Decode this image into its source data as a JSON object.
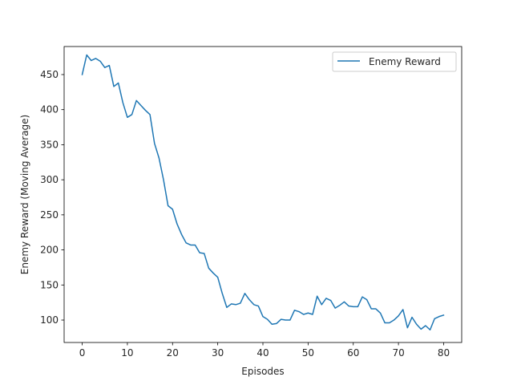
{
  "chart_data": {
    "type": "line",
    "title": "",
    "xlabel": "Episodes",
    "ylabel": "Enemy Reward (Moving Average)",
    "xlim": [
      -4,
      84
    ],
    "ylim": [
      68,
      490
    ],
    "xticks": [
      0,
      10,
      20,
      30,
      40,
      50,
      60,
      70,
      80
    ],
    "yticks": [
      100,
      150,
      200,
      250,
      300,
      350,
      400,
      450
    ],
    "grid": false,
    "legend": {
      "position": "top-right",
      "entries": [
        "Enemy Reward"
      ]
    },
    "series": [
      {
        "name": "Enemy Reward",
        "color": "#1f77b4",
        "x": [
          0,
          1,
          2,
          3,
          4,
          5,
          6,
          7,
          8,
          9,
          10,
          11,
          12,
          13,
          14,
          15,
          16,
          17,
          18,
          19,
          20,
          21,
          22,
          23,
          24,
          25,
          26,
          27,
          28,
          29,
          30,
          31,
          32,
          33,
          34,
          35,
          36,
          37,
          38,
          39,
          40,
          41,
          42,
          43,
          44,
          45,
          46,
          47,
          48,
          49,
          50,
          51,
          52,
          53,
          54,
          55,
          56,
          57,
          58,
          59,
          60,
          61,
          62,
          63,
          64,
          65,
          66,
          67,
          68,
          69,
          70,
          71,
          72,
          73,
          74,
          75,
          76,
          77,
          78,
          79,
          80
        ],
        "values": [
          450,
          478,
          470,
          473,
          469,
          460,
          463,
          433,
          438,
          410,
          389,
          393,
          413,
          406,
          399,
          393,
          352,
          331,
          300,
          263,
          258,
          237,
          222,
          210,
          207,
          207,
          196,
          195,
          174,
          167,
          161,
          138,
          118,
          123,
          122,
          124,
          138,
          129,
          122,
          120,
          105,
          101,
          94,
          95,
          101,
          100,
          100,
          114,
          112,
          108,
          110,
          108,
          134,
          122,
          131,
          128,
          117,
          121,
          126,
          120,
          119,
          119,
          133,
          129,
          116,
          116,
          110,
          96,
          96,
          100,
          106,
          115,
          89,
          104,
          94,
          87,
          92,
          86,
          102,
          105,
          107
        ]
      }
    ]
  }
}
